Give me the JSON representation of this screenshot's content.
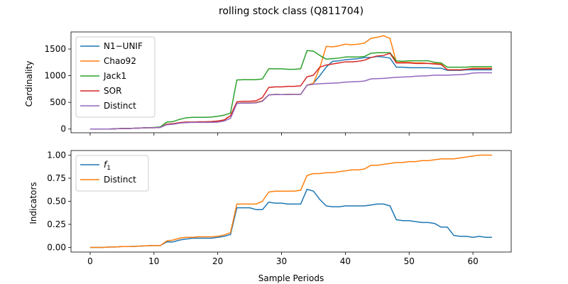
{
  "chart_data": {
    "title": "rolling stock class (Q811704)",
    "xlabel": "Sample Periods",
    "x_ticks": [
      0,
      10,
      20,
      30,
      40,
      50,
      60
    ],
    "xlim": [
      -3,
      66
    ],
    "panels": [
      {
        "type": "line",
        "ylabel": "Cardinality",
        "ylim": [
          -70,
          1820
        ],
        "y_ticks": [
          0,
          500,
          1000,
          1500
        ],
        "legend_position": "upper-left",
        "series": [
          {
            "name": "N1−UNIF",
            "color": "#1f77b4",
            "values": [
              0,
              0,
              0,
              0,
              5,
              10,
              10,
              15,
              20,
              25,
              25,
              30,
              90,
              100,
              120,
              130,
              130,
              135,
              135,
              140,
              150,
              170,
              250,
              480,
              490,
              490,
              500,
              530,
              640,
              650,
              645,
              650,
              650,
              650,
              820,
              860,
              1000,
              1160,
              1270,
              1280,
              1300,
              1310,
              1320,
              1340,
              1340,
              1360,
              1350,
              1330,
              1160,
              1160,
              1150,
              1150,
              1150,
              1150,
              1140,
              1140,
              1100,
              1100,
              1100,
              1110,
              1110,
              1110,
              1110,
              1110
            ]
          },
          {
            "name": "Chao92",
            "color": "#ff7f0e",
            "values": [
              0,
              0,
              0,
              0,
              5,
              10,
              10,
              15,
              20,
              25,
              25,
              30,
              90,
              100,
              120,
              130,
              130,
              135,
              135,
              140,
              150,
              170,
              250,
              480,
              490,
              490,
              500,
              530,
              640,
              650,
              645,
              650,
              650,
              650,
              820,
              860,
              1150,
              1550,
              1540,
              1560,
              1590,
              1580,
              1590,
              1610,
              1700,
              1720,
              1750,
              1700,
              1250,
              1250,
              1250,
              1240,
              1240,
              1230,
              1230,
              1220,
              1110,
              1110,
              1110,
              1120,
              1140,
              1140,
              1140,
              1140
            ]
          },
          {
            "name": "Jack1",
            "color": "#2ca02c",
            "values": [
              0,
              0,
              0,
              0,
              5,
              10,
              10,
              15,
              20,
              25,
              30,
              40,
              130,
              140,
              180,
              210,
              220,
              220,
              220,
              225,
              240,
              260,
              300,
              920,
              925,
              925,
              925,
              940,
              1130,
              1130,
              1130,
              1120,
              1120,
              1130,
              1470,
              1460,
              1380,
              1310,
              1320,
              1330,
              1350,
              1350,
              1350,
              1360,
              1420,
              1430,
              1430,
              1430,
              1280,
              1270,
              1280,
              1280,
              1280,
              1280,
              1250,
              1240,
              1160,
              1160,
              1160,
              1160,
              1170,
              1170,
              1170,
              1170
            ]
          },
          {
            "name": "SOR",
            "color": "#d62728",
            "values": [
              0,
              0,
              0,
              0,
              5,
              10,
              10,
              15,
              20,
              25,
              25,
              30,
              90,
              100,
              120,
              130,
              130,
              135,
              135,
              140,
              150,
              170,
              250,
              510,
              520,
              520,
              530,
              590,
              780,
              790,
              790,
              800,
              800,
              810,
              980,
              1010,
              1160,
              1200,
              1220,
              1240,
              1260,
              1260,
              1270,
              1290,
              1340,
              1370,
              1380,
              1420,
              1240,
              1240,
              1240,
              1230,
              1230,
              1230,
              1220,
              1210,
              1110,
              1110,
              1110,
              1120,
              1130,
              1130,
              1130,
              1130
            ]
          },
          {
            "name": "Distinct",
            "color": "#9467bd",
            "values": [
              0,
              0,
              0,
              0,
              5,
              10,
              10,
              15,
              20,
              25,
              25,
              30,
              80,
              90,
              110,
              120,
              125,
              125,
              125,
              125,
              130,
              150,
              200,
              480,
              485,
              485,
              490,
              520,
              640,
              645,
              645,
              645,
              650,
              650,
              820,
              840,
              850,
              855,
              860,
              865,
              880,
              885,
              890,
              900,
              940,
              945,
              950,
              960,
              970,
              975,
              980,
              990,
              995,
              1000,
              1010,
              1010,
              1010,
              1015,
              1020,
              1030,
              1050,
              1055,
              1055,
              1055
            ]
          }
        ]
      },
      {
        "type": "line",
        "ylabel": "Indicators",
        "ylim": [
          -0.05,
          1.05
        ],
        "y_ticks": [
          "0.00",
          "0.25",
          "0.50",
          "0.75",
          "1.00"
        ],
        "legend_position": "upper-left",
        "series": [
          {
            "name": "f",
            "name_sub": "1",
            "color": "#1f77b4",
            "values": [
              0,
              0,
              0,
              0.005,
              0.005,
              0.01,
              0.01,
              0.012,
              0.015,
              0.018,
              0.02,
              0.02,
              0.06,
              0.06,
              0.08,
              0.09,
              0.1,
              0.1,
              0.1,
              0.1,
              0.11,
              0.12,
              0.14,
              0.43,
              0.43,
              0.43,
              0.41,
              0.41,
              0.49,
              0.48,
              0.48,
              0.47,
              0.47,
              0.47,
              0.63,
              0.61,
              0.52,
              0.45,
              0.44,
              0.44,
              0.45,
              0.45,
              0.45,
              0.45,
              0.46,
              0.47,
              0.47,
              0.45,
              0.3,
              0.29,
              0.29,
              0.28,
              0.27,
              0.27,
              0.26,
              0.22,
              0.22,
              0.13,
              0.12,
              0.12,
              0.11,
              0.12,
              0.11,
              0.11
            ]
          },
          {
            "name": "Distinct",
            "color": "#ff7f0e",
            "values": [
              0,
              0,
              0,
              0.005,
              0.005,
              0.01,
              0.01,
              0.012,
              0.015,
              0.018,
              0.02,
              0.02,
              0.07,
              0.08,
              0.1,
              0.11,
              0.11,
              0.115,
              0.115,
              0.115,
              0.12,
              0.135,
              0.16,
              0.47,
              0.47,
              0.47,
              0.47,
              0.5,
              0.6,
              0.61,
              0.61,
              0.61,
              0.61,
              0.62,
              0.78,
              0.8,
              0.8,
              0.81,
              0.81,
              0.82,
              0.83,
              0.84,
              0.84,
              0.85,
              0.89,
              0.89,
              0.9,
              0.91,
              0.92,
              0.92,
              0.93,
              0.93,
              0.94,
              0.94,
              0.95,
              0.96,
              0.96,
              0.96,
              0.97,
              0.98,
              0.99,
              1.0,
              1.0,
              1.0
            ]
          }
        ]
      }
    ]
  }
}
